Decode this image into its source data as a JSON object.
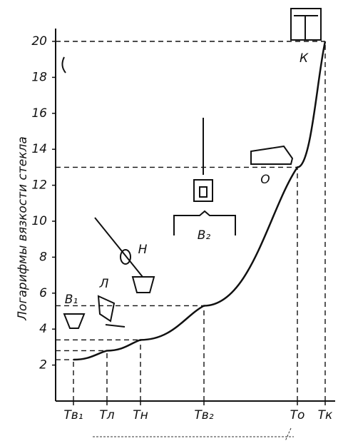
{
  "chart_data": {
    "type": "line",
    "y_label": "Логарифмы вязкости стекла",
    "categories": [
      "Тв₁",
      "Тл",
      "Тн",
      "Тв₂",
      "То",
      "Тк"
    ],
    "values": [
      2.3,
      2.8,
      3.4,
      5.3,
      13,
      20
    ],
    "color": "#111111",
    "ylim": [
      0,
      20
    ],
    "yticks": [
      2,
      4,
      6,
      8,
      10,
      12,
      14,
      16,
      18,
      20
    ],
    "annotations": [
      "В₁",
      "Л",
      "Н",
      "В₂",
      "О",
      "К"
    ]
  }
}
